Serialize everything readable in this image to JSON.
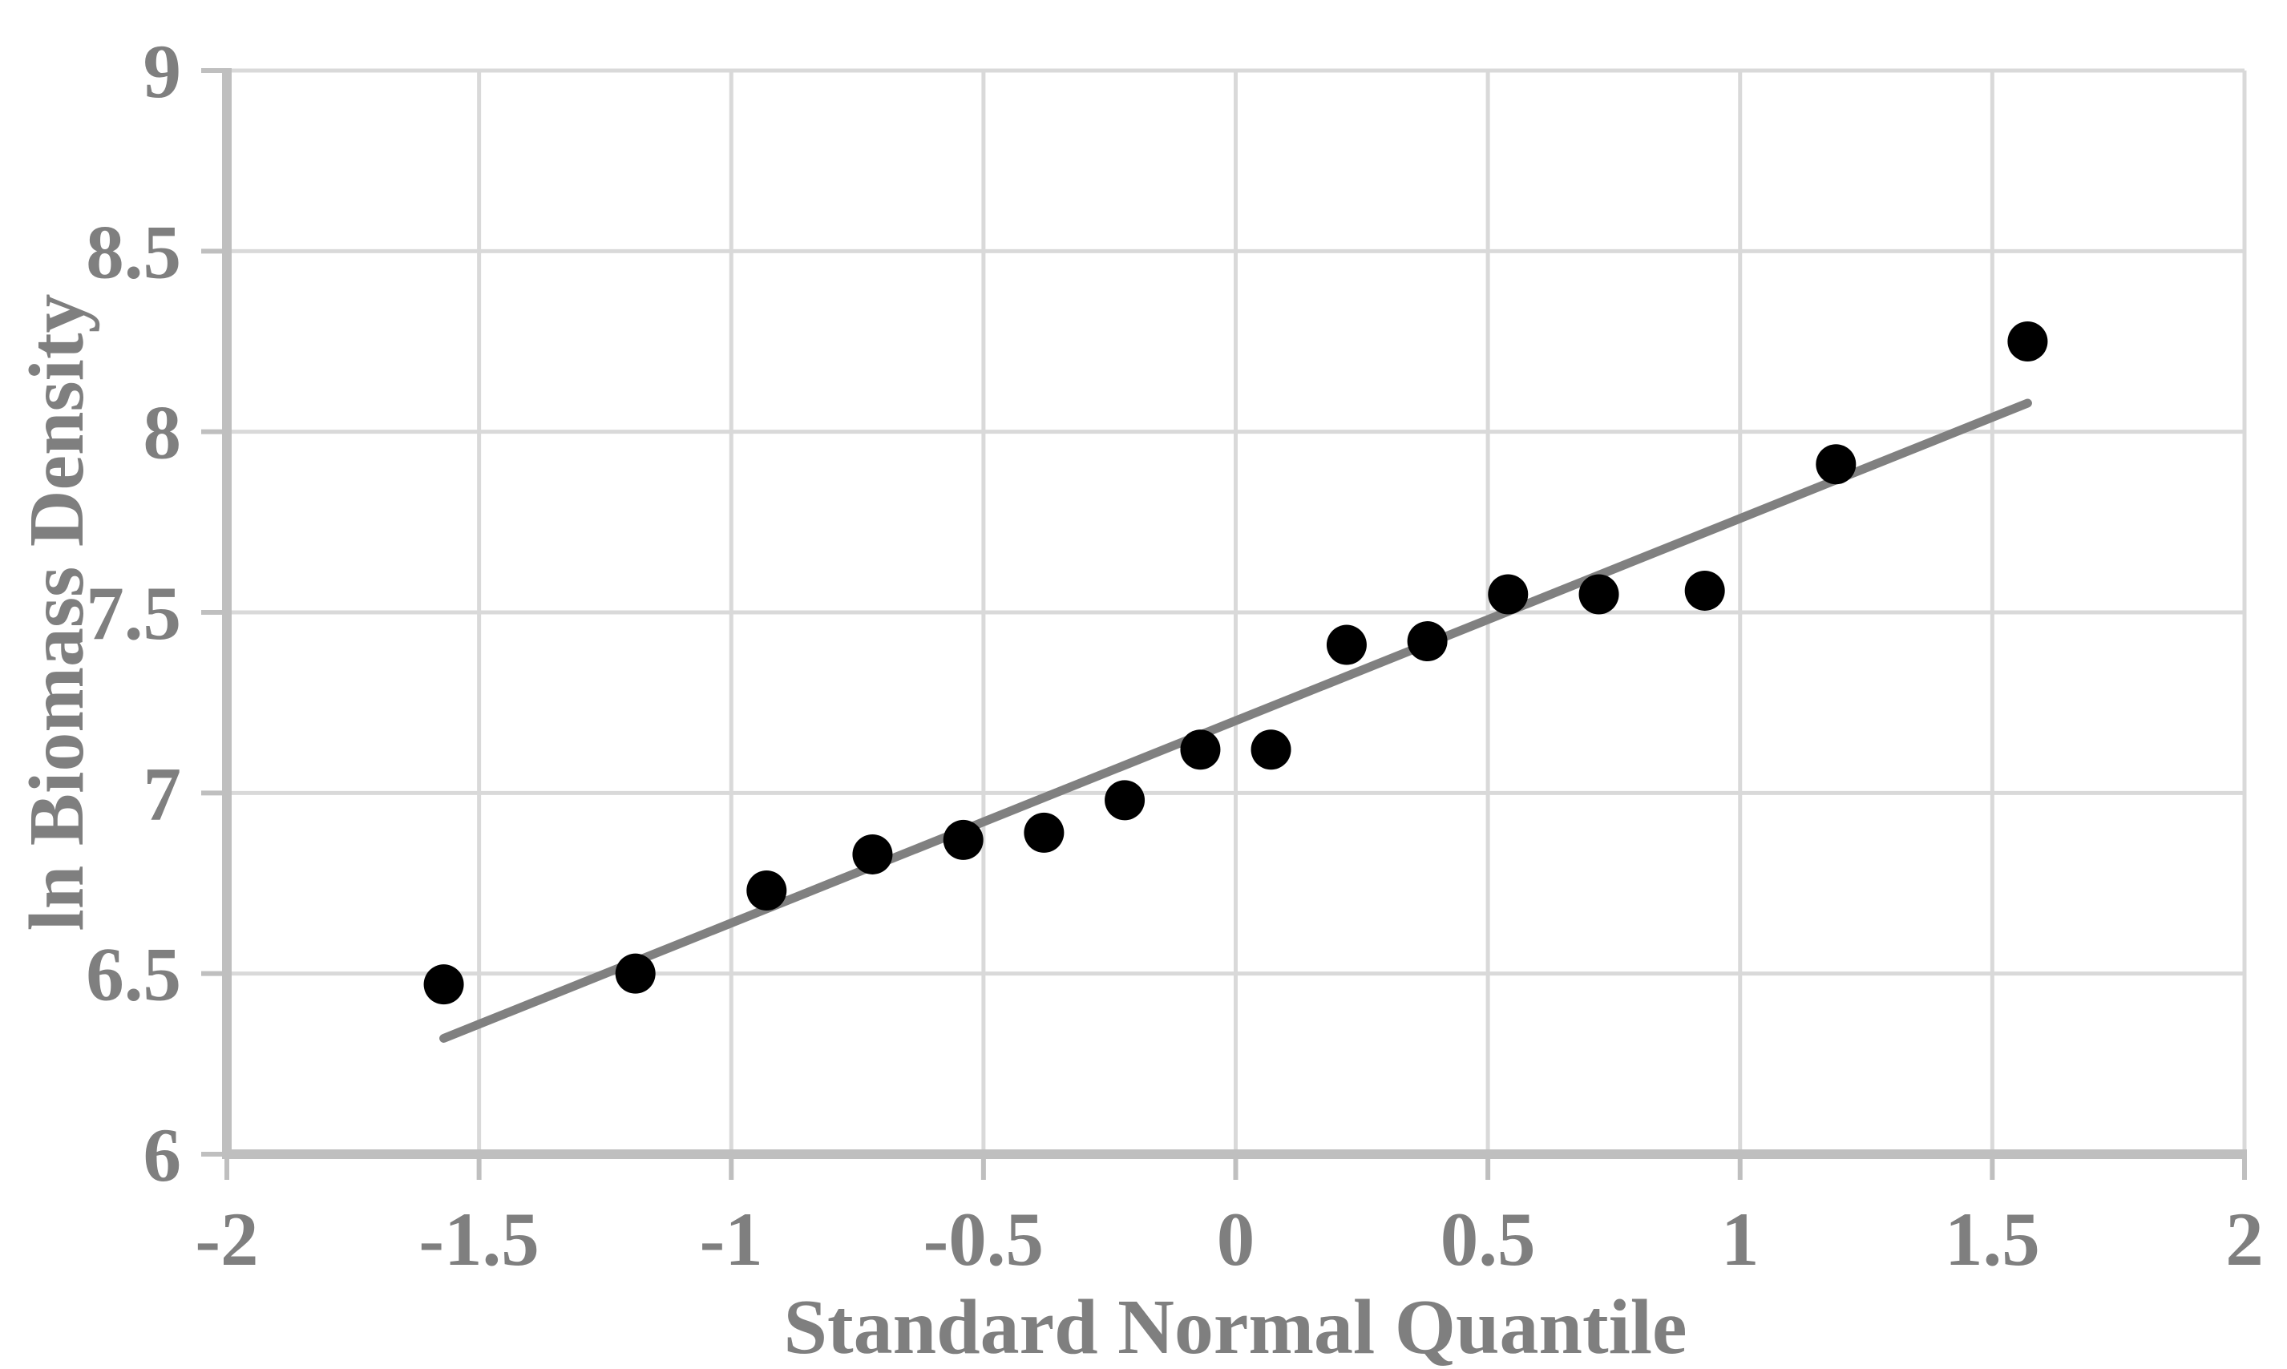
{
  "chart_data": {
    "type": "scatter",
    "title": "",
    "xlabel": "Standard Normal Quantile",
    "ylabel": "ln Biomass Density",
    "xlim": [
      -2,
      2
    ],
    "ylim": [
      6,
      9
    ],
    "xticks": [
      -2,
      -1.5,
      -1,
      -0.5,
      0,
      0.5,
      1,
      1.5,
      2
    ],
    "xtick_labels": [
      "-2",
      "-1.5",
      "-1",
      "-0.5",
      "0",
      "0.5",
      "1",
      "1.5",
      "2"
    ],
    "yticks": [
      6,
      6.5,
      7,
      7.5,
      8,
      8.5,
      9
    ],
    "ytick_labels": [
      "6",
      "6.5",
      "7",
      "7.5",
      "8",
      "8.5",
      "9"
    ],
    "grid": true,
    "legend": false,
    "points": [
      [
        -1.57,
        6.47
      ],
      [
        -1.19,
        6.5
      ],
      [
        -0.93,
        6.73
      ],
      [
        -0.72,
        6.83
      ],
      [
        -0.54,
        6.87
      ],
      [
        -0.38,
        6.89
      ],
      [
        -0.22,
        6.98
      ],
      [
        -0.07,
        7.12
      ],
      [
        0.07,
        7.12
      ],
      [
        0.22,
        7.41
      ],
      [
        0.38,
        7.42
      ],
      [
        0.54,
        7.55
      ],
      [
        0.72,
        7.55
      ],
      [
        0.93,
        7.56
      ],
      [
        1.19,
        7.91
      ],
      [
        1.57,
        8.25
      ]
    ],
    "trendline": {
      "slope": 0.56,
      "intercept": 7.2,
      "x_start": -1.57,
      "x_end": 1.57
    }
  },
  "styles": {
    "background": "#ffffff",
    "marker_color": "#000000",
    "trendline_color": "#808080",
    "gridline_color": "#d9d9d9",
    "axis_color": "#bfbfbf",
    "label_color": "#7f7f7f"
  }
}
